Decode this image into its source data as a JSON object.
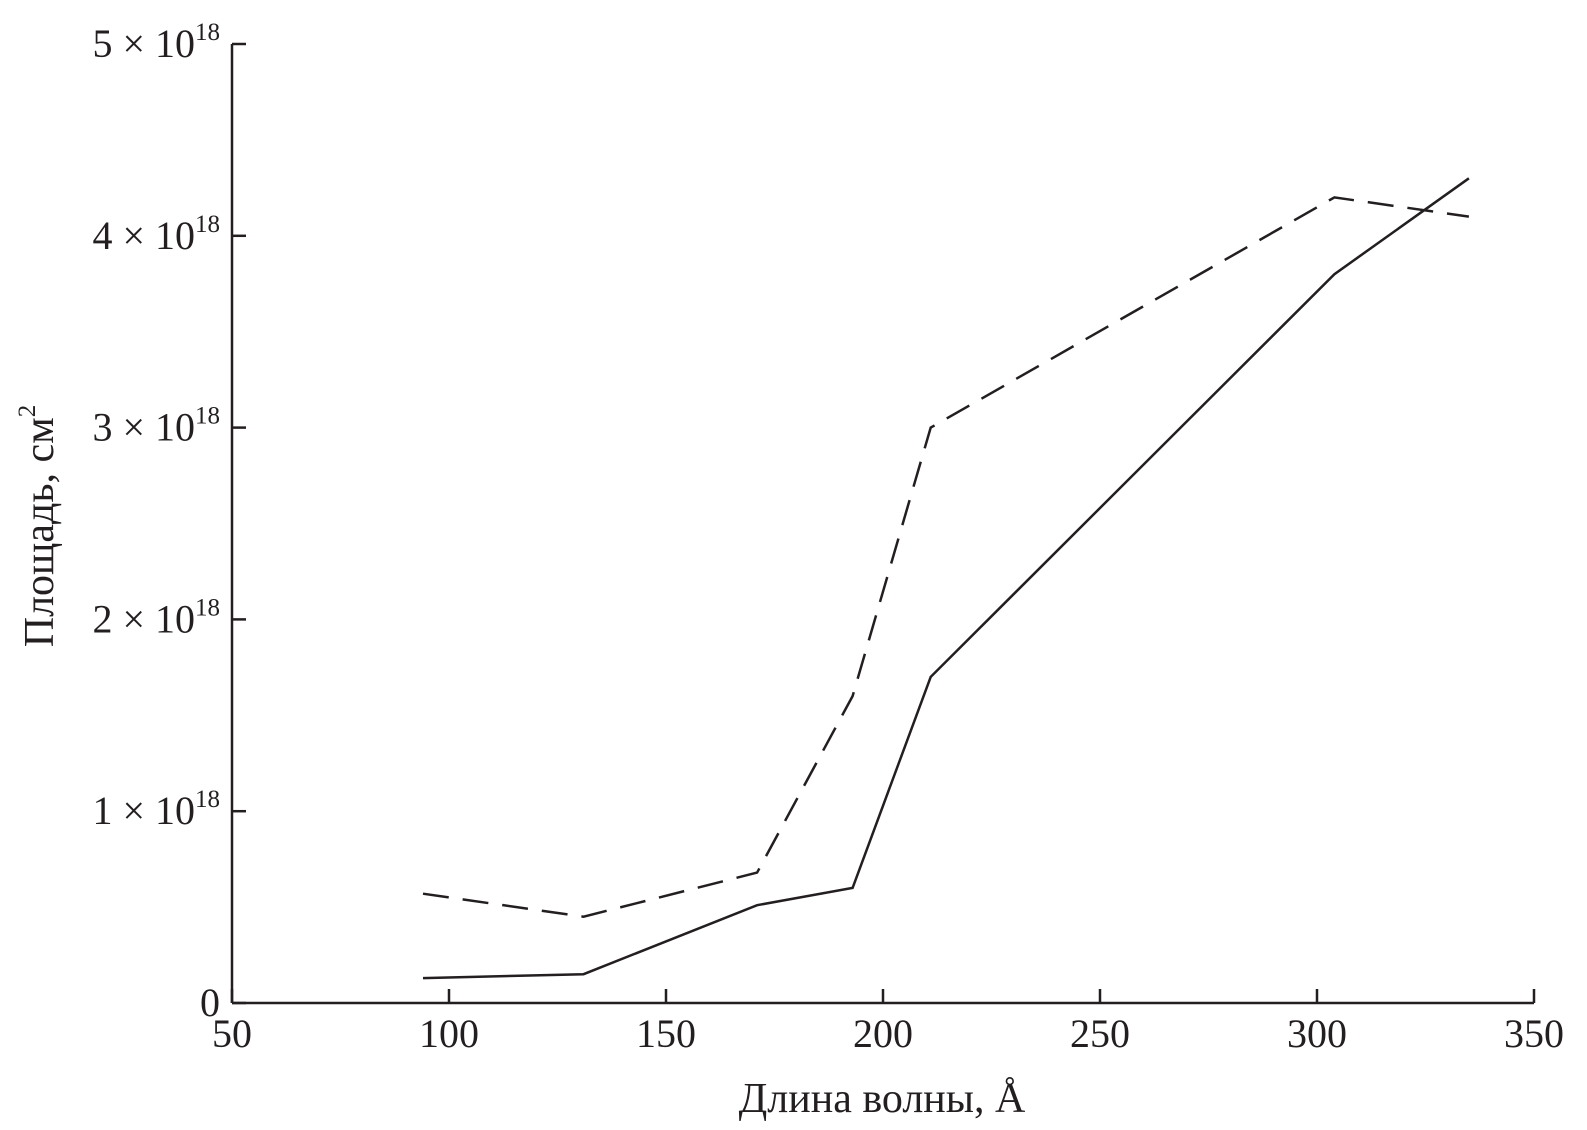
{
  "chart_data": {
    "type": "line",
    "xlabel": "Длина волны, Å",
    "ylabel": "Площадь, см",
    "ylabel_superscript": "2",
    "xlim": [
      50,
      350
    ],
    "ylim": [
      0,
      5e+18
    ],
    "xticks": [
      {
        "value": 50,
        "label": "50"
      },
      {
        "value": 100,
        "label": "100"
      },
      {
        "value": 150,
        "label": "150"
      },
      {
        "value": 200,
        "label": "200"
      },
      {
        "value": 250,
        "label": "250"
      },
      {
        "value": 300,
        "label": "300"
      },
      {
        "value": 350,
        "label": "350"
      }
    ],
    "yticks": [
      {
        "value": 0,
        "label": "0",
        "exp": ""
      },
      {
        "value": 1e+18,
        "label": "1 × 10",
        "exp": "18"
      },
      {
        "value": 2e+18,
        "label": "2 × 10",
        "exp": "18"
      },
      {
        "value": 3e+18,
        "label": "3 × 10",
        "exp": "18"
      },
      {
        "value": 4e+18,
        "label": "4 × 10",
        "exp": "18"
      },
      {
        "value": 5e+18,
        "label": "5 × 10",
        "exp": "18"
      }
    ],
    "grid": false,
    "series": [
      {
        "style": "solid",
        "color": "#231f20",
        "x": [
          94,
          131,
          171,
          193,
          211,
          304,
          335
        ],
        "y": [
          1.3e+17,
          1.5e+17,
          5.1e+17,
          6e+17,
          1.7e+18,
          3.8e+18,
          4.3e+18
        ]
      },
      {
        "style": "dashed",
        "color": "#231f20",
        "x": [
          94,
          131,
          171,
          193,
          211,
          304,
          335
        ],
        "y": [
          5.7e+17,
          4.5e+17,
          6.8e+17,
          1.6e+18,
          3e+18,
          4.2e+18,
          4.1e+18
        ]
      }
    ]
  }
}
